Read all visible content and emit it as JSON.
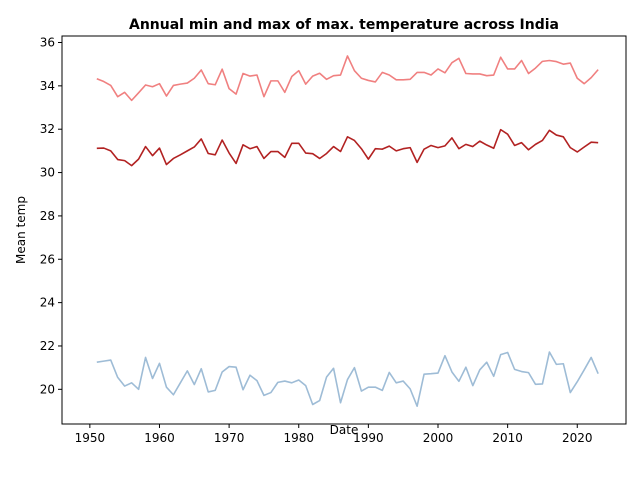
{
  "chart_data": {
    "type": "line",
    "title": "Annual min and max of max. temperature across India",
    "xlabel": "Date",
    "ylabel": "Mean temp",
    "xlim": [
      1946,
      2027
    ],
    "ylim": [
      18.4,
      36.3
    ],
    "xticks": [
      1950,
      1960,
      1970,
      1980,
      1990,
      2000,
      2010,
      2020
    ],
    "yticks": [
      20,
      22,
      24,
      26,
      28,
      30,
      32,
      34,
      36
    ],
    "grid": false,
    "legend": "none",
    "x": [
      1951,
      1952,
      1953,
      1954,
      1955,
      1956,
      1957,
      1958,
      1959,
      1960,
      1961,
      1962,
      1963,
      1964,
      1965,
      1966,
      1967,
      1968,
      1969,
      1970,
      1971,
      1972,
      1973,
      1974,
      1975,
      1976,
      1977,
      1978,
      1979,
      1980,
      1981,
      1982,
      1983,
      1984,
      1985,
      1986,
      1987,
      1988,
      1989,
      1990,
      1991,
      1992,
      1993,
      1994,
      1995,
      1996,
      1997,
      1998,
      1999,
      2000,
      2001,
      2002,
      2003,
      2004,
      2005,
      2006,
      2007,
      2008,
      2009,
      2010,
      2011,
      2012,
      2013,
      2014,
      2015,
      2016,
      2017,
      2018,
      2019,
      2020,
      2021,
      2022,
      2023
    ],
    "series": [
      {
        "color": "#f08080",
        "values": [
          34.33,
          34.2,
          34.02,
          33.5,
          33.7,
          33.33,
          33.68,
          34.04,
          33.96,
          34.1,
          33.53,
          34.02,
          34.08,
          34.13,
          34.35,
          34.73,
          34.1,
          34.05,
          34.77,
          33.87,
          33.62,
          34.57,
          34.45,
          34.5,
          33.5,
          34.23,
          34.23,
          33.7,
          34.43,
          34.7,
          34.08,
          34.45,
          34.58,
          34.3,
          34.47,
          34.5,
          35.38,
          34.7,
          34.35,
          34.25,
          34.18,
          34.62,
          34.5,
          34.28,
          34.28,
          34.3,
          34.62,
          34.62,
          34.5,
          34.78,
          34.6,
          35.07,
          35.27,
          34.57,
          34.55,
          34.55,
          34.47,
          34.5,
          35.32,
          34.78,
          34.78,
          35.17,
          34.57,
          34.82,
          35.13,
          35.17,
          35.12,
          35.0,
          35.05,
          34.35,
          34.1,
          34.38,
          34.75
        ]
      },
      {
        "color": "#b22222",
        "values": [
          31.12,
          31.13,
          31.0,
          30.6,
          30.55,
          30.32,
          30.62,
          31.2,
          30.78,
          31.13,
          30.37,
          30.65,
          30.82,
          31.0,
          31.18,
          31.55,
          30.88,
          30.82,
          31.5,
          30.9,
          30.42,
          31.28,
          31.1,
          31.2,
          30.65,
          30.97,
          30.97,
          30.7,
          31.35,
          31.35,
          30.9,
          30.87,
          30.65,
          30.88,
          31.2,
          30.97,
          31.65,
          31.48,
          31.1,
          30.62,
          31.1,
          31.08,
          31.22,
          31.0,
          31.1,
          31.15,
          30.47,
          31.08,
          31.25,
          31.15,
          31.23,
          31.6,
          31.1,
          31.3,
          31.2,
          31.45,
          31.27,
          31.12,
          31.98,
          31.77,
          31.25,
          31.38,
          31.05,
          31.3,
          31.48,
          31.95,
          31.73,
          31.65,
          31.15,
          30.95,
          31.18,
          31.4,
          31.38
        ]
      },
      {
        "color": "#9ebcd6",
        "values": [
          21.25,
          21.3,
          21.35,
          20.55,
          20.15,
          20.3,
          20.0,
          21.47,
          20.5,
          21.2,
          20.1,
          19.75,
          20.3,
          20.85,
          20.22,
          20.95,
          19.88,
          19.95,
          20.8,
          21.05,
          21.02,
          19.98,
          20.65,
          20.4,
          19.72,
          19.85,
          20.32,
          20.38,
          20.3,
          20.43,
          20.17,
          19.3,
          19.48,
          20.57,
          20.97,
          19.38,
          20.45,
          21.0,
          19.92,
          20.1,
          20.1,
          19.95,
          20.78,
          20.3,
          20.38,
          20.02,
          19.22,
          20.7,
          20.72,
          20.75,
          21.55,
          20.8,
          20.37,
          21.02,
          20.17,
          20.9,
          21.25,
          20.6,
          21.6,
          21.7,
          20.92,
          20.82,
          20.77,
          20.23,
          20.25,
          21.72,
          21.15,
          21.18,
          19.85,
          20.35,
          20.9,
          21.47,
          20.72
        ]
      }
    ]
  }
}
